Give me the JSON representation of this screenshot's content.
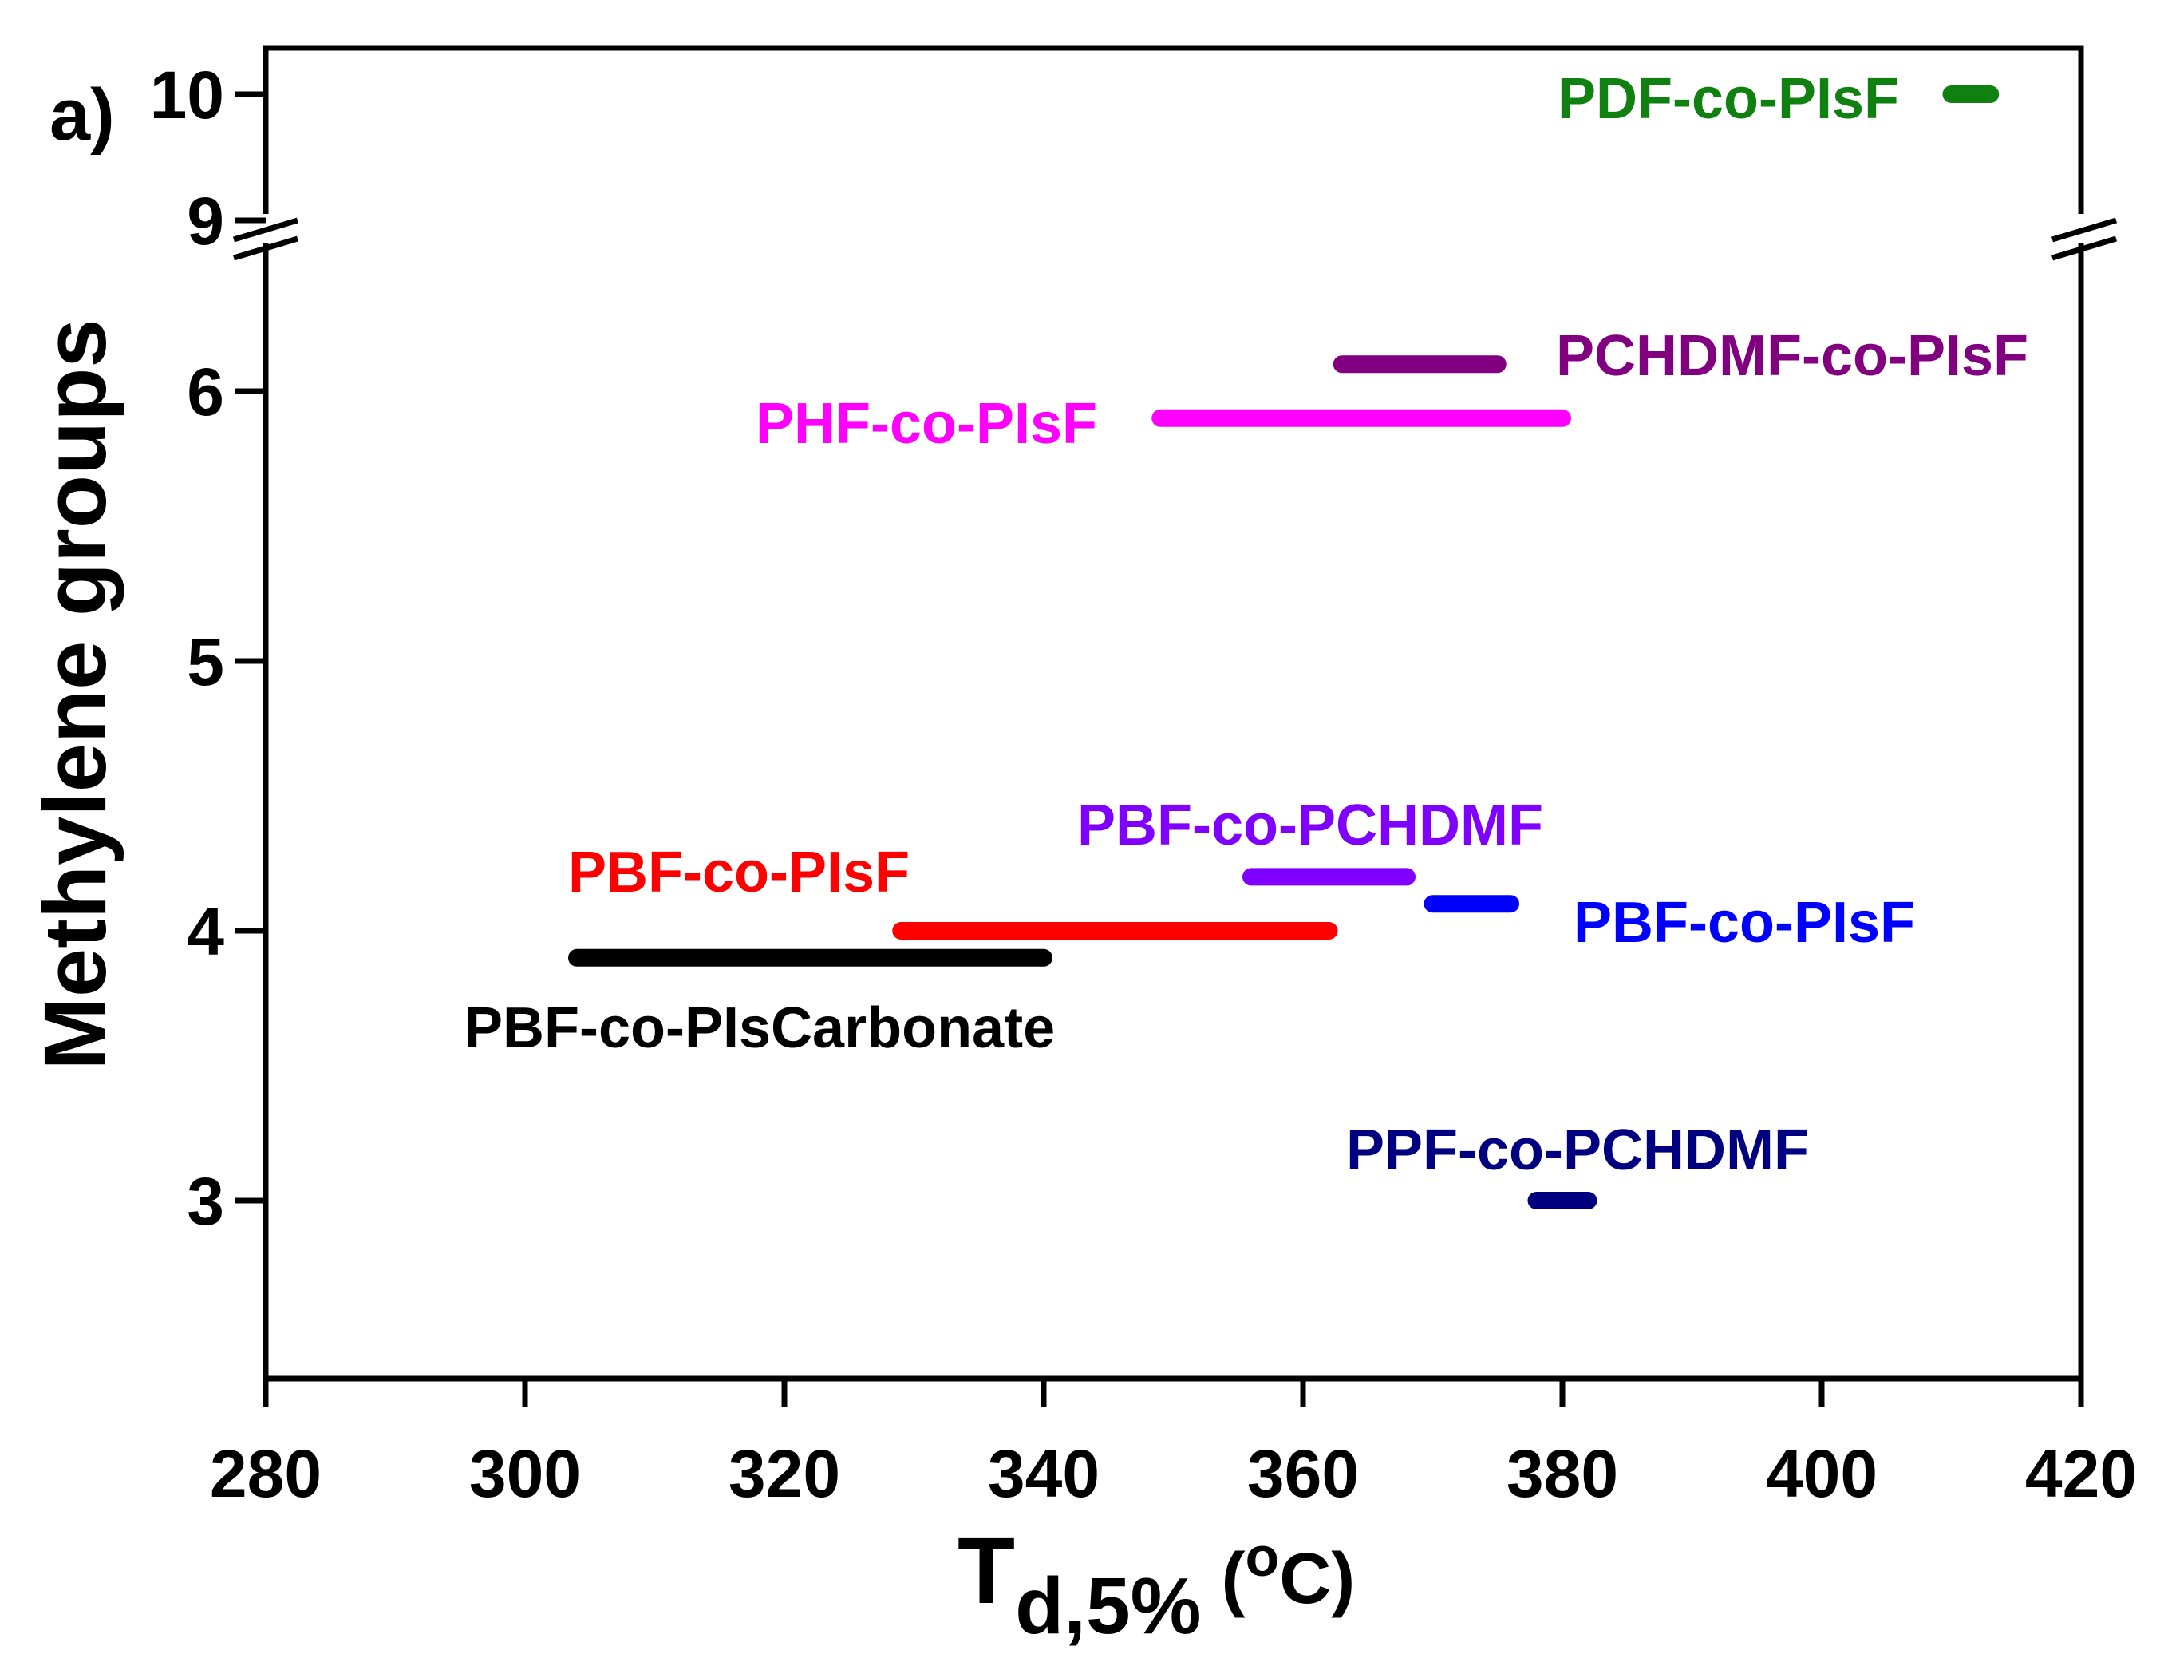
{
  "chart_data": {
    "type": "range",
    "panel_label": "a)",
    "xlabel": {
      "main": "T",
      "sub": "d,5%",
      "unit_open": " (",
      "unit_sup": "o",
      "unit_close": "C)"
    },
    "ylabel": "Methylene groups",
    "xlim": [
      280,
      420
    ],
    "xticks": [
      280,
      300,
      320,
      340,
      360,
      380,
      400,
      420
    ],
    "y_axis_break": {
      "lower_range": [
        2.4,
        6.5
      ],
      "upper_range": [
        8.8,
        10.4
      ]
    },
    "yticks": [
      3,
      4,
      5,
      6,
      9,
      10
    ],
    "series": [
      {
        "name": "PDF-co-PIsF",
        "y": 10,
        "x_min": 410,
        "x_max": 413,
        "color": "#108010"
      },
      {
        "name": "PCHDMF-co-PIsF",
        "y": 6.1,
        "x_min": 363,
        "x_max": 375,
        "color": "#800080"
      },
      {
        "name": "PHF-co-PIsF",
        "y": 5.9,
        "x_min": 349,
        "x_max": 380,
        "color": "#ff00ff"
      },
      {
        "name": "PBF-co-PCHDMF",
        "y": 4.2,
        "x_min": 356,
        "x_max": 368,
        "color": "#8000ff"
      },
      {
        "name": "PBF-co-PIsF",
        "y": 4.1,
        "x_min": 370,
        "x_max": 376,
        "color": "#0000ff"
      },
      {
        "name": "PBF-co-PIsF",
        "y": 4.0,
        "x_min": 329,
        "x_max": 362,
        "color": "#ff0000"
      },
      {
        "name": "PBF-co-PIsCarbonate",
        "y": 3.9,
        "x_min": 304,
        "x_max": 340,
        "color": "#000000"
      },
      {
        "name": "PPF-co-PCHDMF",
        "y": 3.0,
        "x_min": 378,
        "x_max": 382,
        "color": "#000080"
      }
    ]
  }
}
